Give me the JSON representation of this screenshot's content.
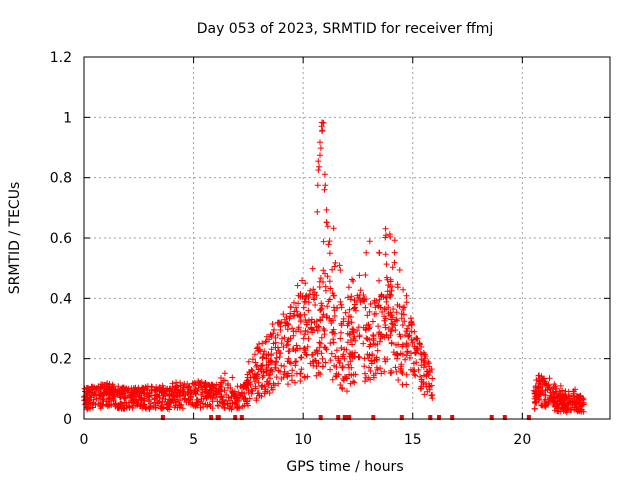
{
  "chart_data": {
    "type": "scatter",
    "title": "Day 053 of 2023, SRMTID for receiver ffmj",
    "xlabel": "GPS time / hours",
    "ylabel": "SRMTID / TECUs",
    "xlim": [
      0,
      24
    ],
    "ylim": [
      0,
      1.2
    ],
    "xticks": [
      "0",
      "5",
      "10",
      "15",
      "20"
    ],
    "xtick_values": [
      0,
      5,
      10,
      15,
      20
    ],
    "yticks": [
      "0",
      "0.2",
      "0.4",
      "0.6",
      "0.8",
      "1",
      "1.2"
    ],
    "ytick_values": [
      0,
      0.2,
      0.4,
      0.6,
      0.8,
      1.0,
      1.2
    ],
    "grid": true,
    "marker": "+",
    "color": "#ff0000",
    "series": [
      {
        "name": "SRMTID",
        "envelope_hours": [
          0,
          1,
          2,
          3,
          4,
          5,
          6,
          6.5,
          7,
          7.5,
          8,
          8.5,
          9,
          9.5,
          10,
          10.5,
          10.8,
          11,
          11.5,
          12,
          12.5,
          13,
          13.5,
          14,
          14.5,
          15,
          15.5,
          15.9,
          20.5,
          21,
          21.5,
          22,
          22.5,
          22.8
        ],
        "envelope_typical": [
          0.07,
          0.08,
          0.07,
          0.07,
          0.07,
          0.08,
          0.08,
          0.08,
          0.06,
          0.1,
          0.15,
          0.18,
          0.22,
          0.25,
          0.28,
          0.28,
          0.3,
          0.35,
          0.25,
          0.2,
          0.3,
          0.25,
          0.28,
          0.32,
          0.25,
          0.22,
          0.18,
          0.12,
          0.07,
          0.09,
          0.06,
          0.05,
          0.05,
          0.05
        ],
        "envelope_max": [
          0.1,
          0.12,
          0.1,
          0.11,
          0.12,
          0.13,
          0.11,
          0.17,
          0.12,
          0.2,
          0.25,
          0.3,
          0.38,
          0.42,
          0.5,
          0.5,
          1.0,
          0.82,
          0.6,
          0.45,
          0.48,
          0.62,
          0.58,
          0.68,
          0.5,
          0.3,
          0.22,
          0.16,
          0.12,
          0.17,
          0.12,
          0.1,
          0.1,
          0.08
        ],
        "cluster_hours": [
          10.7,
          10.8,
          10.85,
          10.9,
          11.0,
          11.1,
          11.2
        ],
        "cluster_values": [
          0.85,
          0.93,
          1.0,
          0.97,
          0.8,
          0.68,
          0.58
        ],
        "zero_hours": [
          3.6,
          5.8,
          6.1,
          6.15,
          6.9,
          7.2,
          10.8,
          11.6,
          11.9,
          12.0,
          12.1,
          13.2,
          14.5,
          15.8,
          16.2,
          16.8,
          18.6,
          19.2,
          20.3
        ]
      }
    ]
  }
}
